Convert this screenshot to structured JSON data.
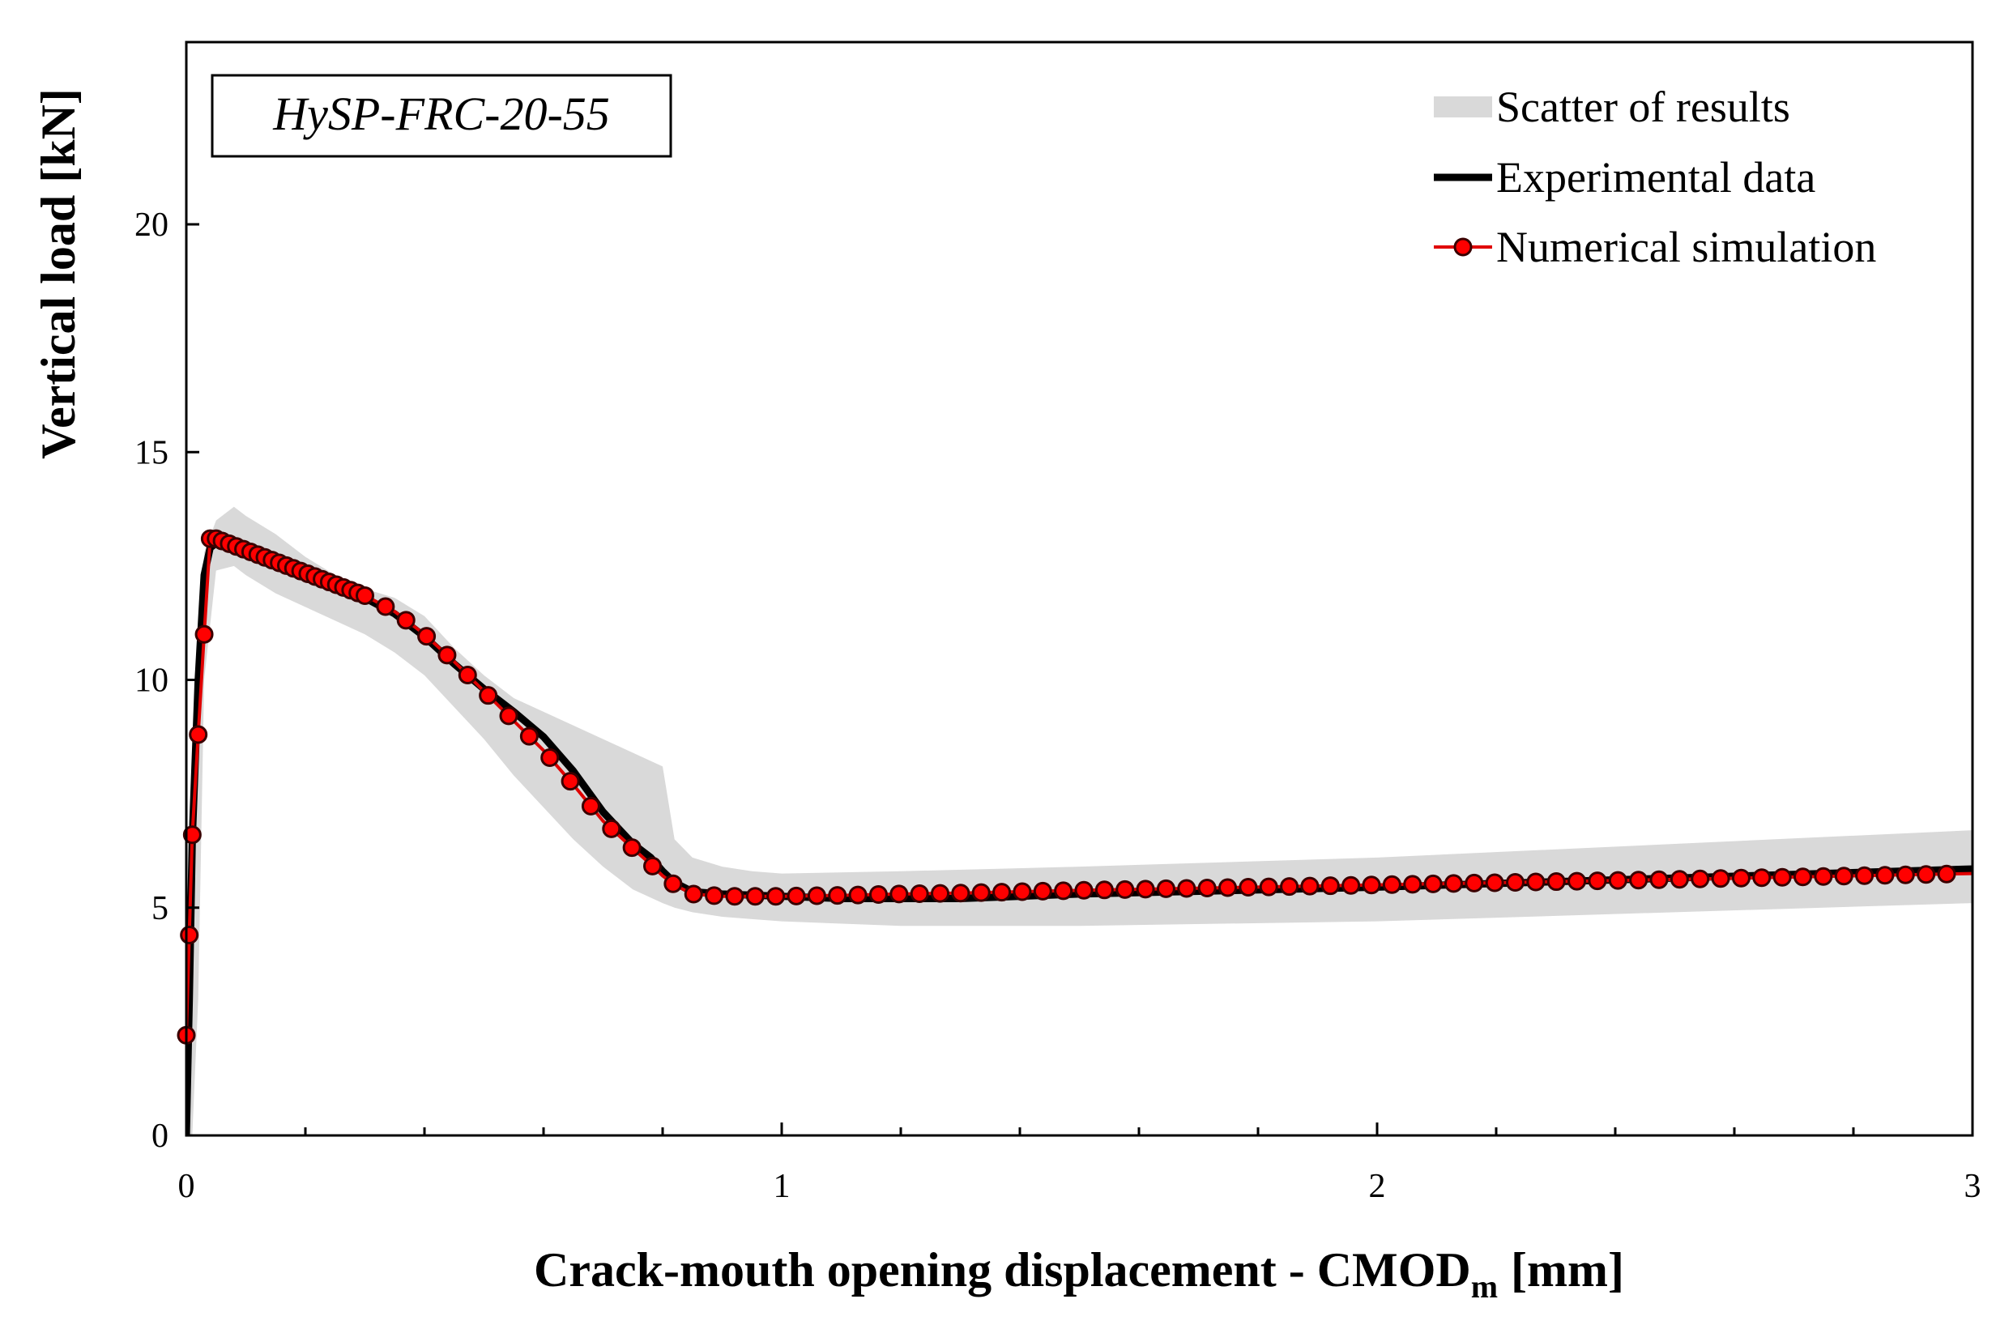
{
  "chart_data": {
    "type": "line",
    "title": "HySP-FRC-20-55",
    "xlabel": "Crack-mouth opening displacement - CMOD",
    "xlabel_subscript": "m",
    "xlabel_unit": "[mm]",
    "ylabel": "Vertical load [kN]",
    "xlim": [
      0,
      3
    ],
    "ylim": [
      0,
      24
    ],
    "x_ticks": [
      0,
      1,
      2,
      3
    ],
    "x_tick_labels": [
      "0",
      "1",
      "2",
      "3"
    ],
    "y_ticks": [
      0,
      5,
      10,
      15,
      20
    ],
    "y_tick_labels": [
      "0",
      "5",
      "10",
      "15",
      "20"
    ],
    "grid": false,
    "legend_position": "top-right",
    "series": [
      {
        "name": "Scatter of results",
        "kind": "band",
        "color": "#d9d9d9",
        "x": [
          0.0,
          0.01,
          0.02,
          0.03,
          0.05,
          0.08,
          0.1,
          0.15,
          0.2,
          0.25,
          0.3,
          0.35,
          0.4,
          0.45,
          0.5,
          0.55,
          0.6,
          0.65,
          0.7,
          0.75,
          0.8,
          0.82,
          0.85,
          0.9,
          0.95,
          1.0,
          1.2,
          1.5,
          2.0,
          2.5,
          3.0
        ],
        "upper": [
          0.0,
          6.0,
          10.5,
          12.8,
          13.5,
          13.8,
          13.6,
          13.2,
          12.7,
          12.3,
          12.0,
          11.8,
          11.4,
          10.7,
          10.1,
          9.6,
          9.3,
          9.0,
          8.7,
          8.4,
          8.1,
          6.5,
          6.1,
          5.9,
          5.8,
          5.75,
          5.8,
          5.9,
          6.1,
          6.4,
          6.7
        ],
        "lower": [
          0.0,
          0.0,
          3.0,
          10.0,
          12.4,
          12.5,
          12.3,
          11.9,
          11.6,
          11.3,
          11.0,
          10.6,
          10.1,
          9.4,
          8.7,
          7.9,
          7.2,
          6.5,
          5.9,
          5.4,
          5.1,
          5.0,
          4.9,
          4.8,
          4.75,
          4.7,
          4.6,
          4.6,
          4.7,
          4.9,
          5.1
        ]
      },
      {
        "name": "Experimental data",
        "kind": "line",
        "color": "#000000",
        "x": [
          0.0,
          0.005,
          0.01,
          0.02,
          0.03,
          0.04,
          0.05,
          0.08,
          0.1,
          0.15,
          0.2,
          0.25,
          0.3,
          0.35,
          0.4,
          0.45,
          0.5,
          0.55,
          0.6,
          0.65,
          0.7,
          0.75,
          0.78,
          0.8,
          0.82,
          0.85,
          0.9,
          1.0,
          1.1,
          1.2,
          1.3,
          1.5,
          2.0,
          2.5,
          3.0
        ],
        "y": [
          0.0,
          3.0,
          6.5,
          10.0,
          12.3,
          12.9,
          13.0,
          12.95,
          12.8,
          12.55,
          12.3,
          12.05,
          11.8,
          11.45,
          10.95,
          10.35,
          9.8,
          9.3,
          8.75,
          8.0,
          7.1,
          6.4,
          6.1,
          5.8,
          5.55,
          5.35,
          5.3,
          5.25,
          5.2,
          5.2,
          5.2,
          5.3,
          5.45,
          5.65,
          5.85
        ]
      },
      {
        "name": "Numerical simulation",
        "kind": "line-markers",
        "color": "#e00000",
        "marker_color": "#ff0000",
        "marker_edge": "#3a0000",
        "x": [
          0.0,
          0.005,
          0.01,
          0.02,
          0.03,
          0.04,
          0.05,
          0.08,
          0.1,
          0.15,
          0.2,
          0.25,
          0.3,
          0.35,
          0.4,
          0.45,
          0.5,
          0.55,
          0.6,
          0.65,
          0.7,
          0.75,
          0.78,
          0.8,
          0.82,
          0.85,
          0.9,
          1.0,
          1.1,
          1.2,
          1.3,
          1.5,
          2.0,
          2.5,
          3.0
        ],
        "y": [
          2.2,
          4.4,
          6.6,
          8.8,
          11.0,
          13.1,
          13.1,
          12.95,
          12.85,
          12.6,
          12.35,
          12.1,
          11.85,
          11.5,
          11.0,
          10.4,
          9.75,
          9.1,
          8.45,
          7.7,
          6.9,
          6.3,
          5.95,
          5.7,
          5.5,
          5.3,
          5.25,
          5.25,
          5.27,
          5.3,
          5.32,
          5.38,
          5.5,
          5.62,
          5.75
        ]
      }
    ]
  }
}
